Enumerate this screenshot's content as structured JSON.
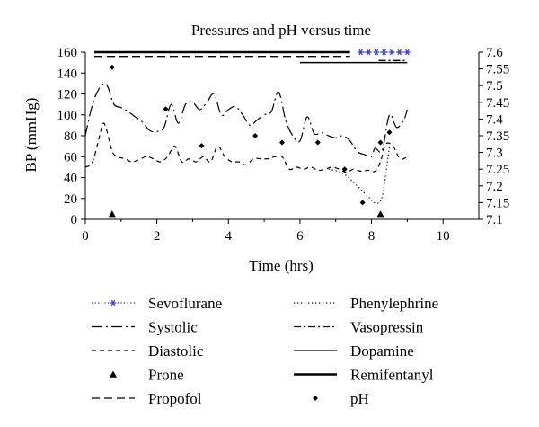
{
  "chart_data": {
    "type": "line",
    "title": "Pressures and pH versus time",
    "xlabel": "Time (hrs)",
    "ylabel": "BP (mmHg)",
    "xlim": [
      0,
      11
    ],
    "ylim": [
      0,
      160
    ],
    "y2lim": [
      7.1,
      7.6
    ],
    "x_ticks": [
      0,
      2,
      4,
      6,
      8,
      10
    ],
    "y_ticks": [
      0,
      20,
      40,
      60,
      80,
      100,
      120,
      140,
      160
    ],
    "y2_ticks": [
      "7.1",
      "7.15",
      "7.2",
      "7.25",
      "7.3",
      "7.35",
      "7.4",
      "7.45",
      "7.5",
      "7.55",
      "7.6"
    ],
    "grid": false,
    "legend_position": "bottom",
    "series": [
      {
        "name": "Systolic",
        "axis": "left",
        "style": "dashdot",
        "x": [
          0,
          0.2,
          0.4,
          0.55,
          0.65,
          0.8,
          1.0,
          1.2,
          1.4,
          1.6,
          1.8,
          2.0,
          2.2,
          2.4,
          2.6,
          2.8,
          3.0,
          3.2,
          3.4,
          3.6,
          3.8,
          4.0,
          4.2,
          4.4,
          4.6,
          4.8,
          5.0,
          5.2,
          5.4,
          5.6,
          5.8,
          6.0,
          6.2,
          6.4,
          6.6,
          6.8,
          7.0,
          7.2,
          7.4,
          7.6,
          7.8,
          8.0,
          8.1,
          8.3,
          8.5,
          8.7,
          8.9,
          9.0
        ],
        "y": [
          80,
          110,
          126,
          130,
          125,
          110,
          107,
          103,
          98,
          93,
          85,
          84,
          88,
          110,
          92,
          110,
          112,
          105,
          112,
          120,
          100,
          105,
          108,
          100,
          90,
          95,
          100,
          103,
          122,
          95,
          80,
          75,
          98,
          82,
          83,
          80,
          78,
          80,
          75,
          65,
          62,
          60,
          68,
          66,
          100,
          88,
          95,
          105
        ]
      },
      {
        "name": "Diastolic",
        "axis": "left",
        "style": "dashed",
        "x": [
          0,
          0.2,
          0.4,
          0.5,
          0.6,
          0.75,
          0.9,
          1.1,
          1.3,
          1.5,
          1.7,
          1.9,
          2.1,
          2.3,
          2.5,
          2.7,
          2.9,
          3.1,
          3.3,
          3.5,
          3.7,
          3.9,
          4.1,
          4.3,
          4.5,
          4.7,
          4.9,
          5.1,
          5.3,
          5.5,
          5.7,
          5.9,
          6.1,
          6.3,
          6.5,
          6.7,
          6.9,
          7.1,
          7.3,
          7.5,
          7.7,
          7.9,
          8.1,
          8.25,
          8.4,
          8.6,
          8.8,
          9.0
        ],
        "y": [
          50,
          55,
          80,
          92,
          85,
          65,
          60,
          58,
          55,
          57,
          60,
          58,
          55,
          60,
          70,
          55,
          58,
          55,
          60,
          55,
          70,
          60,
          55,
          55,
          52,
          58,
          58,
          58,
          60,
          60,
          48,
          50,
          48,
          50,
          47,
          48,
          50,
          48,
          45,
          48,
          46,
          47,
          46,
          55,
          72,
          70,
          58,
          60
        ]
      },
      {
        "name": "Phenylephrine",
        "axis": "left",
        "style": "dotted",
        "x": [
          6.8,
          7.2,
          7.6,
          7.9,
          8.1,
          8.3,
          8.5
        ],
        "y": [
          48,
          44,
          32,
          22,
          16,
          22,
          70
        ]
      },
      {
        "name": "pH",
        "axis": "right",
        "style": "marker-diamond",
        "x": [
          0.75,
          2.25,
          3.25,
          4.75,
          5.5,
          6.5,
          7.25,
          7.75,
          8.25,
          8.5
        ],
        "y": [
          7.555,
          7.43,
          7.32,
          7.35,
          7.33,
          7.33,
          7.25,
          7.15,
          7.33,
          7.36
        ]
      },
      {
        "name": "Prone",
        "axis": "left",
        "style": "marker-triangle",
        "x": [
          0.75,
          8.25
        ],
        "y": [
          5,
          5
        ]
      },
      {
        "name": "Remifentanyl",
        "axis": "left",
        "style": "bar-thick",
        "x": [
          0.25,
          7.4
        ],
        "y": [
          160,
          160
        ]
      },
      {
        "name": "Propofol",
        "axis": "left",
        "style": "bar-dashed",
        "x": [
          0.25,
          7.4
        ],
        "y": [
          156,
          156
        ]
      },
      {
        "name": "Sevoflurane",
        "axis": "left",
        "style": "bar-star",
        "x": [
          7.7,
          9.0
        ],
        "y": [
          160,
          160
        ]
      },
      {
        "name": "Vasopressin",
        "axis": "left",
        "style": "bar-dashdot",
        "x": [
          8.2,
          9.0
        ],
        "y": [
          152,
          152
        ]
      },
      {
        "name": "Dopamine",
        "axis": "left",
        "style": "bar-solid",
        "x": [
          6.0,
          9.0
        ],
        "y": [
          150,
          150
        ]
      }
    ],
    "legend": [
      {
        "label": "Sevoflurane",
        "style": "bar-star"
      },
      {
        "label": "Phenylephrine",
        "style": "dotted"
      },
      {
        "label": "Systolic",
        "style": "dashdot"
      },
      {
        "label": "Vasopressin",
        "style": "bar-dashdot"
      },
      {
        "label": "Diastolic",
        "style": "dashed"
      },
      {
        "label": "Dopamine",
        "style": "bar-solid"
      },
      {
        "label": "Prone",
        "style": "marker-triangle"
      },
      {
        "label": "Remifentanyl",
        "style": "bar-thick"
      },
      {
        "label": "Propofol",
        "style": "bar-dashed"
      },
      {
        "label": "pH",
        "style": "marker-diamond"
      }
    ],
    "colors": {
      "line": "#000000",
      "sevoflurane_marker": "#3b3bd6"
    }
  }
}
